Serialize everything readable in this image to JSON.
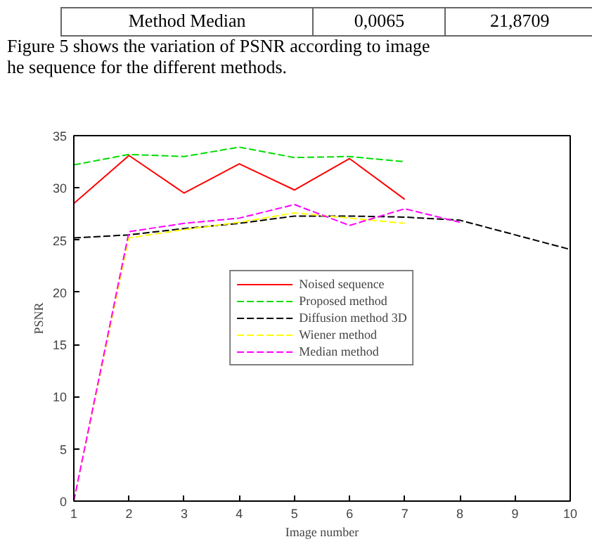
{
  "chart_data": {
    "type": "line",
    "xlabel": "Image number",
    "ylabel": "PSNR",
    "annotations": [
      "Method Median",
      "0,0065",
      "21,8709",
      "Figure 5 shows the variation of PSNR according to image",
      "he sequence for the different methods."
    ],
    "xlim": [
      1,
      10
    ],
    "ylim": [
      0,
      35
    ],
    "xticks": [
      1,
      2,
      3,
      4,
      5,
      6,
      7,
      8,
      9,
      10
    ],
    "yticks": [
      0,
      5,
      10,
      15,
      20,
      25,
      30,
      35
    ],
    "grid": false,
    "legend": "center",
    "marker": "none",
    "series": [
      {
        "name": "Noised sequence",
        "color": "#ff0000",
        "line_style": "solid",
        "x": [
          1,
          2,
          3,
          4,
          5,
          6,
          7
        ],
        "values": [
          28.5,
          33.1,
          29.5,
          32.3,
          29.8,
          32.8,
          28.9
        ]
      },
      {
        "name": "Proposed method",
        "color": "#00dd00",
        "line_style": "dashed",
        "x": [
          1,
          2,
          3,
          4,
          5,
          6,
          7
        ],
        "values": [
          32.2,
          33.2,
          33.0,
          33.9,
          32.9,
          33.0,
          32.5
        ]
      },
      {
        "name": "Diffusion method 3D",
        "color": "#000000",
        "line_style": "dashed",
        "x": [
          1,
          2,
          3,
          4,
          5,
          6,
          7,
          8,
          9,
          10
        ],
        "values": [
          25.2,
          25.5,
          26.1,
          26.6,
          27.3,
          27.3,
          27.2,
          26.9,
          25.5,
          24.1
        ]
      },
      {
        "name": "Wiener method",
        "color": "#ffff00",
        "line_style": "dashed",
        "x": [
          1,
          2,
          3,
          4,
          5,
          6,
          7
        ],
        "values": [
          0,
          25.2,
          26.0,
          26.7,
          27.6,
          27.1,
          26.6
        ]
      },
      {
        "name": "Median method",
        "color": "#ff00ff",
        "line_style": "dashed",
        "x": [
          1,
          2,
          3,
          4,
          5,
          6,
          7,
          8
        ],
        "values": [
          0,
          25.8,
          26.6,
          27.1,
          28.4,
          26.4,
          28.0,
          26.7
        ]
      }
    ]
  }
}
